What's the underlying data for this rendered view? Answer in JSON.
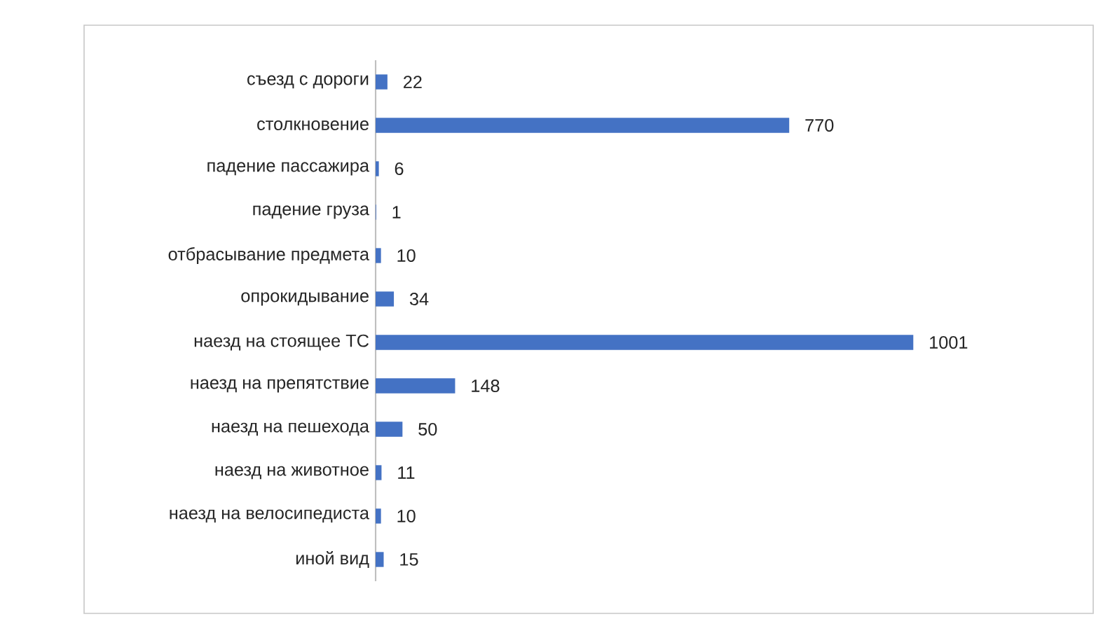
{
  "chart_data": {
    "type": "bar",
    "orientation": "horizontal",
    "data_labels": true,
    "color": "#4472c4",
    "categories": [
      "съезд с дороги",
      "столкновение",
      "падение пассажира",
      "падение груза",
      "отбрасывание предмета",
      "опрокидывание",
      "наезд на стоящее ТС",
      "наезд на препятствие",
      "наезд на пешехода",
      "наезд на животное",
      "наезд на велосипедиста",
      "иной вид"
    ],
    "values": [
      22,
      770,
      6,
      1,
      10,
      34,
      1001,
      148,
      50,
      11,
      10,
      15
    ]
  }
}
